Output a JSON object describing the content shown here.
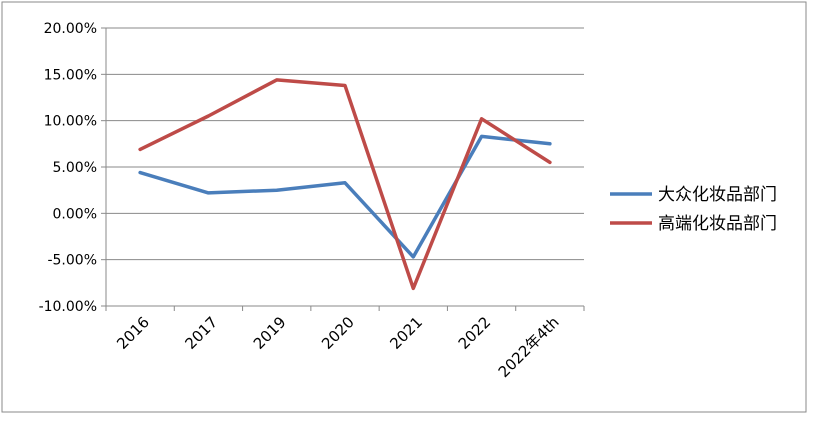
{
  "chart_data": {
    "type": "line",
    "categories": [
      "2016",
      "2017",
      "2019",
      "2020",
      "2021",
      "2022",
      "2022年4th"
    ],
    "series": [
      {
        "name": "大众化妆品部门",
        "color": "#4a7ebb",
        "values": [
          4.4,
          2.2,
          2.5,
          3.3,
          -4.7,
          8.3,
          7.5
        ]
      },
      {
        "name": "高端化妆品部门",
        "color": "#be4b48",
        "values": [
          6.9,
          10.5,
          14.4,
          13.8,
          -8.1,
          10.2,
          5.5
        ]
      }
    ],
    "y_ticks": [
      "20.00%",
      "15.00%",
      "10.00%",
      "5.00%",
      "0.00%",
      "-5.00%",
      "-10.00%"
    ],
    "ylim": [
      -10,
      20
    ],
    "y_unit": "%",
    "grid": "horizontal",
    "legend_position": "right",
    "title": "",
    "xlabel": "",
    "ylabel": ""
  }
}
